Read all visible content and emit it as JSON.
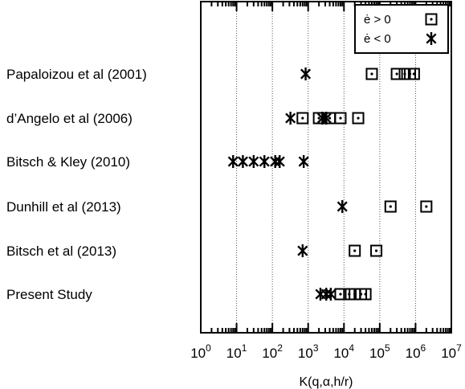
{
  "chart_data": {
    "type": "scatter",
    "title": "",
    "xlabel": "K(q,α,h/r)",
    "ylabel": "",
    "x_scale": "log",
    "xlim": [
      1,
      10000000
    ],
    "grid": "vertical dotted lines at each decade",
    "legend_position": "top-right",
    "x_tick_labels": [
      {
        "base": "10",
        "exp": "0"
      },
      {
        "base": "10",
        "exp": "1"
      },
      {
        "base": "10",
        "exp": "2"
      },
      {
        "base": "10",
        "exp": "3"
      },
      {
        "base": "10",
        "exp": "4"
      },
      {
        "base": "10",
        "exp": "5"
      },
      {
        "base": "10",
        "exp": "6"
      },
      {
        "base": "10",
        "exp": "7"
      }
    ],
    "categories": [
      "Papaloizou et al (2001)",
      "d’Angelo et al (2006)",
      "Bitsch & Kley (2010)",
      "Dunhill et al (2013)",
      "Bitsch et al (2013)",
      "Present Study"
    ],
    "series": [
      {
        "name": "ė > 0",
        "marker": "square",
        "points": [
          [
            [
              60000,
              300000,
              500000,
              700000,
              900000
            ]
          ],
          [
            [
              700,
              2000,
              4000,
              8000,
              25000
            ]
          ],
          [
            []
          ],
          [
            [
              200000,
              2000000
            ]
          ],
          [
            [
              20000,
              80000
            ]
          ],
          [
            [
              8000,
              14000,
              20000,
              30000,
              40000
            ]
          ]
        ]
      },
      {
        "name": "ė < 0",
        "marker": "asterisk",
        "points": [
          [
            [
              850
            ]
          ],
          [
            [
              320,
              2500,
              3200
            ]
          ],
          [
            [
              8,
              15,
              30,
              60,
              120,
              160,
              750
            ]
          ],
          [
            [
              9000
            ]
          ],
          [
            [
              700
            ]
          ],
          [
            [
              2200,
              3200,
              4300
            ]
          ]
        ]
      }
    ]
  }
}
